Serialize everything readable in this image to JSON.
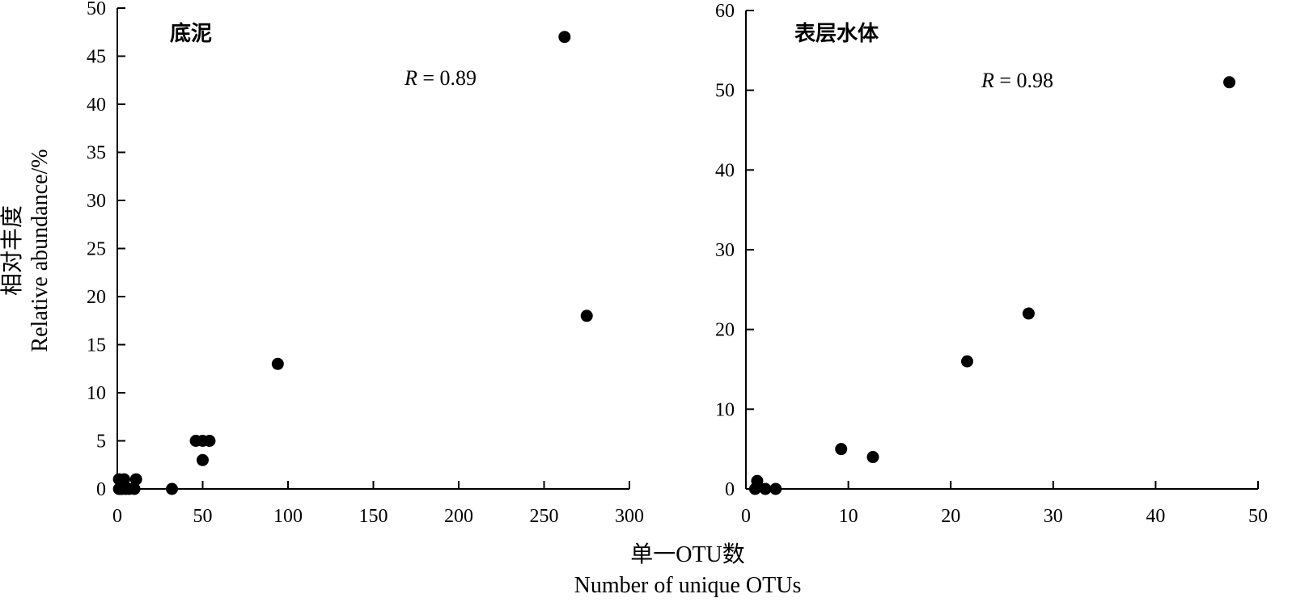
{
  "figure": {
    "y_axis_title_cn": "相对丰度",
    "y_axis_title_en": "Relative abundance/%",
    "x_axis_title_cn": "单一OTU数",
    "x_axis_title_en": "Number of unique OTUs"
  },
  "chart_data": [
    {
      "type": "scatter",
      "panel_label": "底泥",
      "r_symbol": "R",
      "r_value_text": " = 0.89",
      "xlim": [
        0,
        300
      ],
      "ylim": [
        0,
        50
      ],
      "xticks": [
        "0",
        "50",
        "100",
        "150",
        "200",
        "250",
        "300"
      ],
      "yticks": [
        "0",
        "5",
        "10",
        "15",
        "20",
        "25",
        "30",
        "35",
        "40",
        "45",
        "50"
      ],
      "marker_color": "#000000",
      "points": [
        {
          "x": 1,
          "y": 0
        },
        {
          "x": 2,
          "y": 0
        },
        {
          "x": 3,
          "y": 0
        },
        {
          "x": 5,
          "y": 0
        },
        {
          "x": 7,
          "y": 0
        },
        {
          "x": 10,
          "y": 0
        },
        {
          "x": 1,
          "y": 1
        },
        {
          "x": 4,
          "y": 1
        },
        {
          "x": 11,
          "y": 1
        },
        {
          "x": 32,
          "y": 0
        },
        {
          "x": 46,
          "y": 5
        },
        {
          "x": 50,
          "y": 5
        },
        {
          "x": 54,
          "y": 5
        },
        {
          "x": 50,
          "y": 3
        },
        {
          "x": 94,
          "y": 13
        },
        {
          "x": 262,
          "y": 47
        },
        {
          "x": 275,
          "y": 18
        }
      ]
    },
    {
      "type": "scatter",
      "panel_label": "表层水体",
      "r_symbol": "R",
      "r_value_text": " = 0.98",
      "xlim": [
        0,
        50
      ],
      "ylim": [
        0,
        60
      ],
      "xticks": [
        "0",
        "10",
        "20",
        "30",
        "40",
        "50"
      ],
      "yticks": [
        "0",
        "10",
        "20",
        "30",
        "40",
        "50",
        "60"
      ],
      "marker_color": "#000000",
      "points": [
        {
          "x": 0.9,
          "y": 0
        },
        {
          "x": 1.1,
          "y": 1
        },
        {
          "x": 1.9,
          "y": 0
        },
        {
          "x": 2.9,
          "y": 0
        },
        {
          "x": 9.3,
          "y": 5
        },
        {
          "x": 12.4,
          "y": 4
        },
        {
          "x": 21.6,
          "y": 16
        },
        {
          "x": 27.6,
          "y": 22
        },
        {
          "x": 47.2,
          "y": 51
        }
      ]
    }
  ]
}
